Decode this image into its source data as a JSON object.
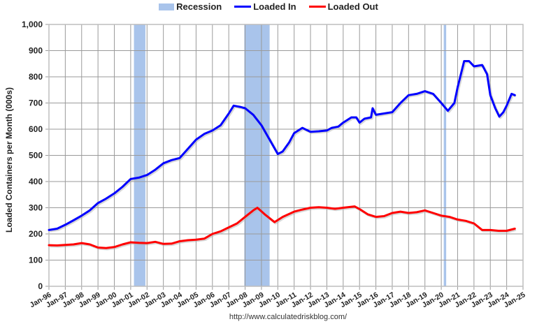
{
  "chart_data": {
    "type": "line",
    "title": "",
    "xlabel": "",
    "ylabel": "Loaded Containers per Month (000s)",
    "ylim": [
      0,
      1000
    ],
    "xlim": [
      1996,
      2025
    ],
    "grid": true,
    "legend_position": "top",
    "y_ticks": [
      "0",
      "100",
      "200",
      "300",
      "400",
      "500",
      "600",
      "700",
      "800",
      "900",
      "1,000"
    ],
    "x_ticks": [
      "Jan-96",
      "Jan-97",
      "Jan-98",
      "Jan-99",
      "Jan-00",
      "Jan-01",
      "Jan-02",
      "Jan-03",
      "Jan-04",
      "Jan-05",
      "Jan-06",
      "Jan-07",
      "Jan-08",
      "Jan-09",
      "Jan-10",
      "Jan-11",
      "Jan-12",
      "Jan-13",
      "Jan-14",
      "Jan-15",
      "Jan-16",
      "Jan-17",
      "Jan-18",
      "Jan-19",
      "Jan-20",
      "Jan-21",
      "Jan-22",
      "Jan-23",
      "Jan-24",
      "Jan-25"
    ],
    "legend": [
      {
        "name": "Recession",
        "kind": "box",
        "color": "#a9c4eb"
      },
      {
        "name": "Loaded In",
        "kind": "line",
        "color": "#0000ff"
      },
      {
        "name": "Loaded Out",
        "kind": "line",
        "color": "#ff0000"
      }
    ],
    "recessions": [
      [
        2001.2,
        2001.9
      ],
      [
        2007.95,
        2009.5
      ],
      [
        2020.15,
        2020.3
      ]
    ],
    "series": [
      {
        "name": "Loaded In",
        "color": "#0000ff",
        "x": [
          1996,
          1996.5,
          1997,
          1997.5,
          1998,
          1998.5,
          1999,
          1999.5,
          2000,
          2000.5,
          2001,
          2001.5,
          2002,
          2002.5,
          2003,
          2003.5,
          2004,
          2004.5,
          2005,
          2005.5,
          2006,
          2006.5,
          2007,
          2007.3,
          2007.7,
          2008,
          2008.5,
          2009,
          2009.5,
          2010,
          2010.3,
          2010.7,
          2011,
          2011.5,
          2012,
          2012.5,
          2013,
          2013.3,
          2013.7,
          2014,
          2014.5,
          2014.8,
          2015,
          2015.3,
          2015.7,
          2015.8,
          2016,
          2016.5,
          2017,
          2017.5,
          2018,
          2018.5,
          2019,
          2019.5,
          2020,
          2020.4,
          2020.8,
          2021,
          2021.4,
          2021.7,
          2022,
          2022.5,
          2022.8,
          2023,
          2023.3,
          2023.55,
          2023.8,
          2024,
          2024.3,
          2024.5
        ],
        "values": [
          215,
          220,
          235,
          252,
          270,
          290,
          318,
          335,
          355,
          380,
          410,
          415,
          425,
          445,
          470,
          482,
          490,
          525,
          560,
          582,
          595,
          615,
          660,
          690,
          685,
          680,
          655,
          615,
          560,
          505,
          515,
          550,
          585,
          605,
          590,
          592,
          595,
          605,
          610,
          625,
          645,
          645,
          625,
          640,
          645,
          680,
          655,
          660,
          665,
          700,
          730,
          735,
          745,
          735,
          700,
          670,
          700,
          760,
          860,
          860,
          840,
          845,
          810,
          730,
          680,
          648,
          665,
          690,
          735,
          730
        ]
      },
      {
        "name": "Loaded Out",
        "color": "#ff0000",
        "x": [
          1996,
          1996.5,
          1997,
          1997.5,
          1998,
          1998.5,
          1999,
          1999.5,
          2000,
          2000.5,
          2001,
          2001.5,
          2002,
          2002.5,
          2003,
          2003.5,
          2004,
          2004.5,
          2005,
          2005.5,
          2006,
          2006.5,
          2007,
          2007.5,
          2008,
          2008.5,
          2008.75,
          2009.2,
          2009.8,
          2010.3,
          2011,
          2011.5,
          2012,
          2012.5,
          2013,
          2013.5,
          2014,
          2014.7,
          2015,
          2015.5,
          2016,
          2016.5,
          2017,
          2017.5,
          2018,
          2018.5,
          2019,
          2019.5,
          2020,
          2020.5,
          2021,
          2021.5,
          2022,
          2022.5,
          2023,
          2023.5,
          2024,
          2024.5
        ],
        "values": [
          157,
          156,
          158,
          160,
          165,
          160,
          148,
          146,
          150,
          160,
          168,
          166,
          165,
          170,
          162,
          163,
          172,
          176,
          178,
          182,
          200,
          210,
          225,
          240,
          265,
          290,
          300,
          275,
          245,
          265,
          285,
          293,
          300,
          302,
          300,
          296,
          300,
          305,
          295,
          275,
          265,
          268,
          280,
          285,
          280,
          283,
          290,
          280,
          270,
          265,
          255,
          250,
          240,
          215,
          215,
          212,
          212,
          220
        ]
      }
    ]
  },
  "legend": {
    "recession": "Recession",
    "loaded_in": "Loaded In",
    "loaded_out": "Loaded Out"
  },
  "footer": {
    "url": "http://www.calculatedriskblog.com/"
  }
}
